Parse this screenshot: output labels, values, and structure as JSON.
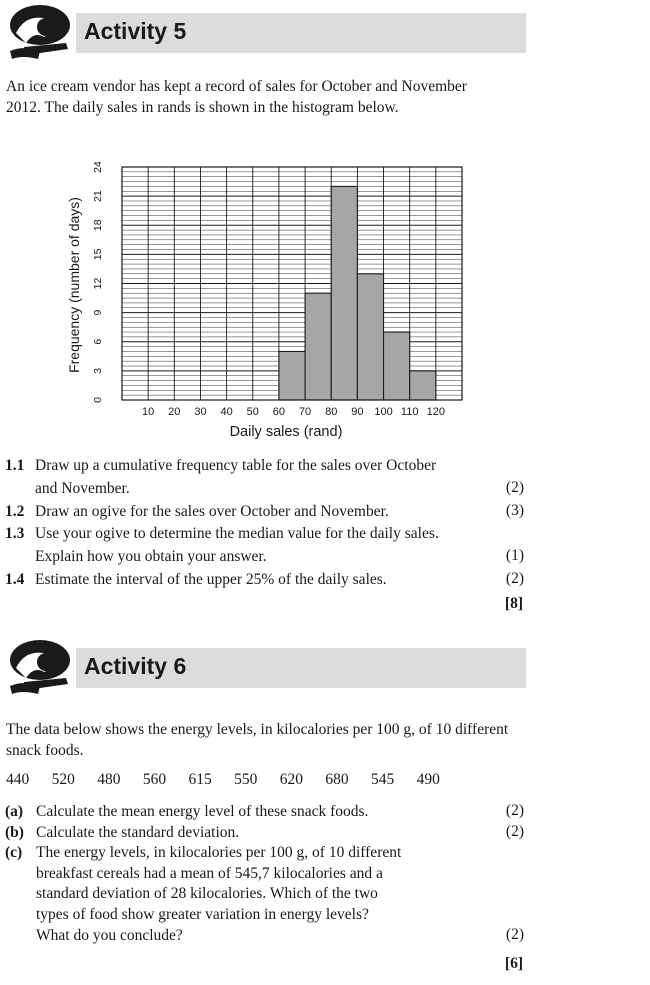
{
  "activity5": {
    "title": "Activity 5",
    "intro": "An ice cream vendor has kept a record of sales for October and November 2012. The daily sales in rands is shown in the histogram below.",
    "questions": [
      {
        "num": "1.1",
        "lines": [
          "Draw up a cumulative frequency table for the sales over October",
          "and November."
        ],
        "mark": "(2)"
      },
      {
        "num": "1.2",
        "lines": [
          "Draw an ogive for the sales over October and November."
        ],
        "mark": "(3)"
      },
      {
        "num": "1.3",
        "lines": [
          "Use your ogive to determine the median value for the daily sales.",
          "Explain how you obtain your answer."
        ],
        "mark": "(1)"
      },
      {
        "num": "1.4",
        "lines": [
          "Estimate the interval of the upper 25% of the daily sales."
        ],
        "mark": "(2)"
      }
    ],
    "total": "[8]"
  },
  "chart_data": {
    "type": "bar",
    "histogram": true,
    "bins": [
      [
        60,
        70
      ],
      [
        70,
        80
      ],
      [
        80,
        90
      ],
      [
        90,
        100
      ],
      [
        100,
        110
      ],
      [
        110,
        120
      ]
    ],
    "values": [
      5,
      11,
      22,
      13,
      7,
      3
    ],
    "x_ticks": [
      "10",
      "20",
      "30",
      "40",
      "50",
      "60",
      "70",
      "80",
      "90",
      "100",
      "110",
      "120"
    ],
    "y_ticks": [
      "0",
      "3",
      "6",
      "9",
      "12",
      "15",
      "18",
      "21",
      "24"
    ],
    "xlabel": "Daily sales (rand)",
    "ylabel": "Frequency (number of days)",
    "xlim": [
      0,
      130
    ],
    "ylim": [
      0,
      24
    ],
    "grid": true,
    "bar_color": "#a6a6a6"
  },
  "activity6": {
    "title": "Activity 6",
    "intro": "The data below shows the energy levels, in kilocalories per 100 g, of 10 different snack foods.",
    "values": [
      "440",
      "520",
      "480",
      "560",
      "615",
      "550",
      "620",
      "680",
      "545",
      "490"
    ],
    "questions": [
      {
        "num": "(a)",
        "lines": [
          "Calculate the mean energy level of these snack foods."
        ],
        "mark": "(2)"
      },
      {
        "num": "(b)",
        "lines": [
          "Calculate the standard deviation."
        ],
        "mark": "(2)"
      },
      {
        "num": "(c)",
        "lines": [
          "The energy levels, in kilocalories per 100 g, of 10 different",
          "breakfast cereals had a mean of 545,7 kilocalories and a",
          "standard deviation of 28 kilocalories. Which of the two",
          "types of food show greater variation in energy levels?",
          "What do you conclude?"
        ],
        "mark": "(2)"
      }
    ],
    "total": "[6]"
  }
}
